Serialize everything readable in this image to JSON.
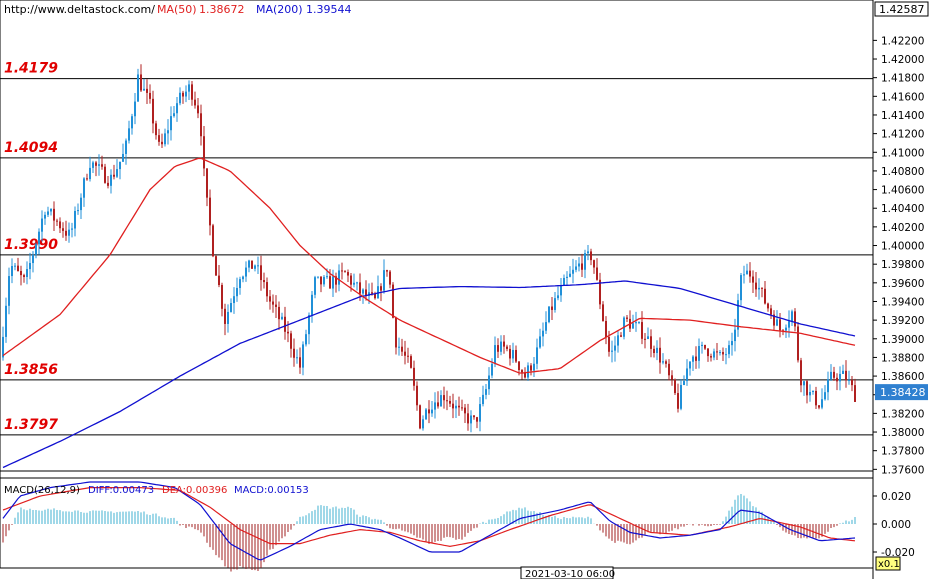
{
  "header": {
    "url": "http://www.deltastock.com/",
    "ma50_label": "MA(50)",
    "ma50_value": "1.38672",
    "ma200_label": "MA(200)",
    "ma200_value": "1.39544"
  },
  "macd_header": {
    "label": "MACD(26,12,9)",
    "diff": "DIFF:0.00473",
    "dea": "DEA:0.00396",
    "macd": "MACD:0.00153"
  },
  "levels": [
    {
      "label": "1.4179",
      "value": 1.4179
    },
    {
      "label": "1.4094",
      "value": 1.4094
    },
    {
      "label": "1.3990",
      "value": 1.399
    },
    {
      "label": "1.3856",
      "value": 1.3856
    },
    {
      "label": "1.3797",
      "value": 1.3797
    }
  ],
  "price_axis": {
    "top_label": "1.42587",
    "current_label": "1.38428",
    "current_value": 1.38428,
    "ticks": [
      "1.42200",
      "1.42000",
      "1.41800",
      "1.41600",
      "1.41400",
      "1.41200",
      "1.41000",
      "1.40800",
      "1.40600",
      "1.40400",
      "1.40200",
      "1.40000",
      "1.39800",
      "1.39600",
      "1.39400",
      "1.39200",
      "1.39000",
      "1.38800",
      "1.38600",
      "1.38400",
      "1.38200",
      "1.38000",
      "1.37800",
      "1.37600"
    ]
  },
  "macd_axis": {
    "ticks": [
      "0.020",
      "0.000",
      "-0.020"
    ],
    "scale_label": "x0.1"
  },
  "time_label": "2021-03-10 06:00",
  "colors": {
    "bull": "#2090d8",
    "bear": "#b02020",
    "ma50": "#e02020",
    "ma200": "#1010d0",
    "level_label": "#e00000",
    "macd_pos": "#40b0d0",
    "macd_neg": "#a02020",
    "diff_line": "#1010d0",
    "dea_line": "#e02020"
  },
  "chart_data": {
    "type": "candlestick",
    "ylim": [
      1.3755,
      1.4259
    ],
    "macd_ylim": [
      -0.03,
      0.03
    ],
    "legend": [
      "MA(50)",
      "MA(200)"
    ],
    "price_anchors": [
      [
        0,
        1.388
      ],
      [
        10,
        1.398
      ],
      [
        25,
        1.396
      ],
      [
        45,
        1.404
      ],
      [
        70,
        1.401
      ],
      [
        90,
        1.409
      ],
      [
        110,
        1.407
      ],
      [
        125,
        1.41
      ],
      [
        138,
        1.418
      ],
      [
        150,
        1.415
      ],
      [
        160,
        1.41
      ],
      [
        175,
        1.415
      ],
      [
        190,
        1.417
      ],
      [
        200,
        1.414
      ],
      [
        205,
        1.406
      ],
      [
        215,
        1.398
      ],
      [
        225,
        1.392
      ],
      [
        240,
        1.397
      ],
      [
        255,
        1.398
      ],
      [
        270,
        1.394
      ],
      [
        285,
        1.391
      ],
      [
        300,
        1.387
      ],
      [
        315,
        1.396
      ],
      [
        330,
        1.396
      ],
      [
        345,
        1.397
      ],
      [
        360,
        1.395
      ],
      [
        375,
        1.394
      ],
      [
        388,
        1.398
      ],
      [
        395,
        1.39
      ],
      [
        410,
        1.387
      ],
      [
        420,
        1.381
      ],
      [
        430,
        1.383
      ],
      [
        445,
        1.384
      ],
      [
        460,
        1.382
      ],
      [
        475,
        1.381
      ],
      [
        485,
        1.384
      ],
      [
        495,
        1.389
      ],
      [
        505,
        1.389
      ],
      [
        515,
        1.388
      ],
      [
        525,
        1.386
      ],
      [
        535,
        1.388
      ],
      [
        550,
        1.393
      ],
      [
        565,
        1.396
      ],
      [
        580,
        1.398
      ],
      [
        592,
        1.399
      ],
      [
        600,
        1.394
      ],
      [
        610,
        1.388
      ],
      [
        625,
        1.392
      ],
      [
        640,
        1.391
      ],
      [
        655,
        1.389
      ],
      [
        665,
        1.387
      ],
      [
        678,
        1.383
      ],
      [
        690,
        1.388
      ],
      [
        705,
        1.389
      ],
      [
        720,
        1.388
      ],
      [
        732,
        1.389
      ],
      [
        742,
        1.397
      ],
      [
        752,
        1.397
      ],
      [
        765,
        1.394
      ],
      [
        780,
        1.391
      ],
      [
        793,
        1.393
      ],
      [
        800,
        1.386
      ],
      [
        810,
        1.384
      ],
      [
        820,
        1.383
      ],
      [
        832,
        1.386
      ],
      [
        845,
        1.386
      ],
      [
        855,
        1.384
      ]
    ],
    "ma50": [
      [
        3,
        1.3882
      ],
      [
        60,
        1.3926
      ],
      [
        110,
        1.399
      ],
      [
        150,
        1.406
      ],
      [
        175,
        1.4085
      ],
      [
        200,
        1.4094
      ],
      [
        230,
        1.408
      ],
      [
        270,
        1.404
      ],
      [
        300,
        1.4
      ],
      [
        330,
        1.397
      ],
      [
        370,
        1.394
      ],
      [
        400,
        1.392
      ],
      [
        440,
        1.39
      ],
      [
        480,
        1.388
      ],
      [
        520,
        1.3863
      ],
      [
        560,
        1.3868
      ],
      [
        600,
        1.3898
      ],
      [
        640,
        1.3922
      ],
      [
        690,
        1.392
      ],
      [
        740,
        1.3913
      ],
      [
        800,
        1.3906
      ],
      [
        855,
        1.3893
      ]
    ],
    "ma200": [
      [
        3,
        1.3762
      ],
      [
        60,
        1.379
      ],
      [
        120,
        1.3822
      ],
      [
        180,
        1.386
      ],
      [
        240,
        1.3895
      ],
      [
        300,
        1.392
      ],
      [
        360,
        1.3945
      ],
      [
        400,
        1.3954
      ],
      [
        460,
        1.3956
      ],
      [
        520,
        1.3955
      ],
      [
        580,
        1.3958
      ],
      [
        625,
        1.3962
      ],
      [
        680,
        1.3954
      ],
      [
        740,
        1.3935
      ],
      [
        800,
        1.3916
      ],
      [
        855,
        1.3903
      ]
    ],
    "macd_diff": [
      [
        3,
        0.004
      ],
      [
        20,
        0.02
      ],
      [
        50,
        0.026
      ],
      [
        90,
        0.03
      ],
      [
        140,
        0.03
      ],
      [
        175,
        0.026
      ],
      [
        200,
        0.014
      ],
      [
        230,
        -0.014
      ],
      [
        260,
        -0.026
      ],
      [
        290,
        -0.016
      ],
      [
        320,
        -0.004
      ],
      [
        350,
        0.0
      ],
      [
        380,
        -0.004
      ],
      [
        400,
        -0.01
      ],
      [
        430,
        -0.02
      ],
      [
        460,
        -0.02
      ],
      [
        490,
        -0.008
      ],
      [
        520,
        0.004
      ],
      [
        560,
        0.01
      ],
      [
        590,
        0.016
      ],
      [
        610,
        0.002
      ],
      [
        630,
        -0.006
      ],
      [
        660,
        -0.01
      ],
      [
        690,
        -0.008
      ],
      [
        720,
        -0.004
      ],
      [
        740,
        0.01
      ],
      [
        760,
        0.008
      ],
      [
        790,
        -0.004
      ],
      [
        820,
        -0.012
      ],
      [
        855,
        -0.01
      ]
    ],
    "macd_dea": [
      [
        3,
        0.01
      ],
      [
        40,
        0.02
      ],
      [
        90,
        0.026
      ],
      [
        140,
        0.026
      ],
      [
        180,
        0.024
      ],
      [
        210,
        0.012
      ],
      [
        240,
        -0.004
      ],
      [
        270,
        -0.014
      ],
      [
        300,
        -0.014
      ],
      [
        330,
        -0.008
      ],
      [
        360,
        -0.004
      ],
      [
        390,
        -0.006
      ],
      [
        420,
        -0.012
      ],
      [
        450,
        -0.016
      ],
      [
        480,
        -0.012
      ],
      [
        510,
        -0.004
      ],
      [
        550,
        0.006
      ],
      [
        590,
        0.014
      ],
      [
        620,
        0.004
      ],
      [
        650,
        -0.006
      ],
      [
        690,
        -0.008
      ],
      [
        730,
        -0.002
      ],
      [
        760,
        0.004
      ],
      [
        800,
        -0.002
      ],
      [
        830,
        -0.01
      ],
      [
        855,
        -0.012
      ]
    ]
  }
}
